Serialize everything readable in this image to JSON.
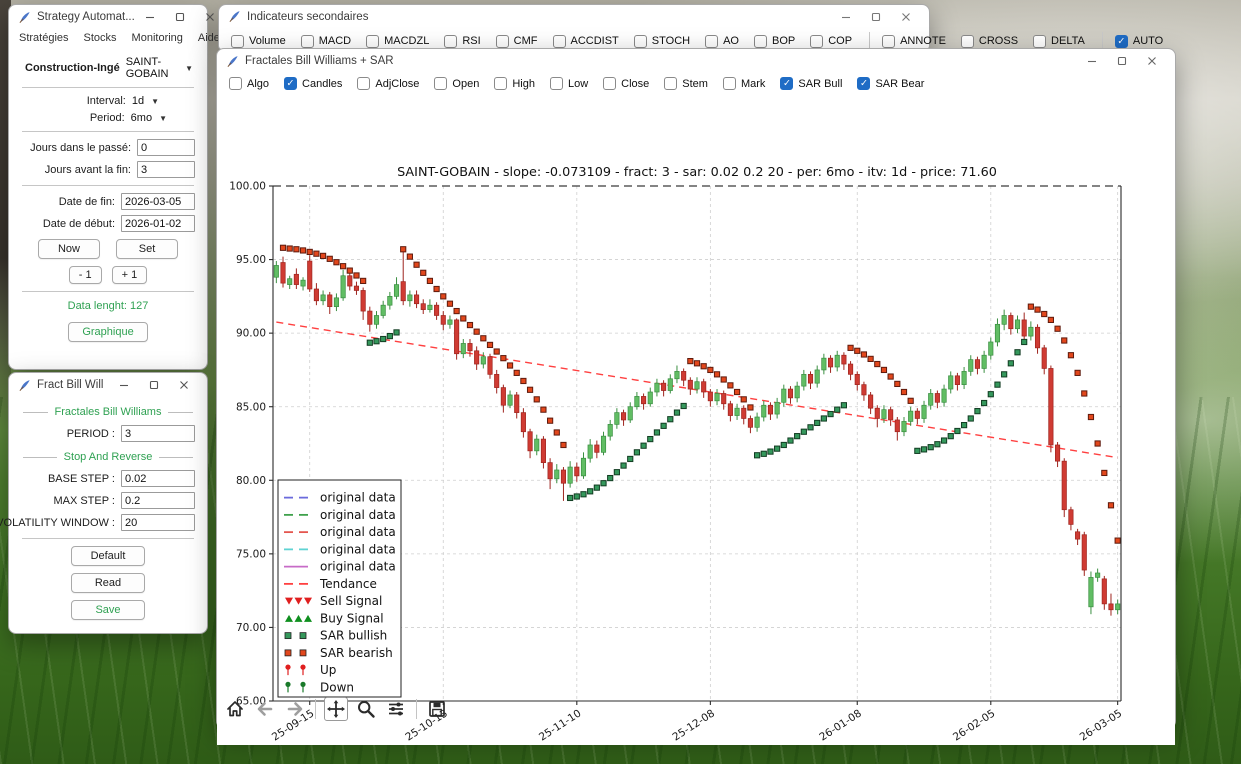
{
  "app": {
    "strategy_window": {
      "title": "Strategy Automat...",
      "menu": [
        "Stratégies",
        "Stocks",
        "Monitoring",
        "Aide"
      ],
      "construction_label": "Construction-Ingé",
      "construction_value": "SAINT-GOBAIN",
      "interval_label": "Interval:",
      "interval_value": "1d",
      "period_label": "Period:",
      "period_value": "6mo",
      "days_past_label": "Jours dans le passé:",
      "days_past_value": "0",
      "days_end_label": "Jours avant la fin:",
      "days_end_value": "3",
      "date_end_label": "Date de fin:",
      "date_end_value": "2026-03-05",
      "date_start_label": "Date de début:",
      "date_start_value": "2026-01-02",
      "now_button": "Now",
      "set_button": "Set",
      "minus_button": "- 1",
      "plus_button": "+ 1",
      "data_length_text": "Data lenght: 127",
      "graphique_button": "Graphique"
    },
    "fract_window": {
      "title": "Fract Bill Will",
      "section_fractales": "Fractales Bill Williams",
      "period_label": "PERIOD :",
      "period_value": "3",
      "section_sar": "Stop And Reverse",
      "base_step_label": "BASE STEP :",
      "base_step_value": "0.02",
      "max_step_label": "MAX STEP :",
      "max_step_value": "0.2",
      "vol_window_label": "VOLATILITY WINDOW :",
      "vol_window_value": "20",
      "default_button": "Default",
      "read_button": "Read",
      "save_button": "Save"
    },
    "indicators_window": {
      "title": "Indicateurs secondaires",
      "checkboxes": [
        {
          "label": "Volume",
          "checked": false
        },
        {
          "label": "MACD",
          "checked": false
        },
        {
          "label": "MACDZL",
          "checked": false
        },
        {
          "label": "RSI",
          "checked": false
        },
        {
          "label": "CMF",
          "checked": false
        },
        {
          "label": "ACCDIST",
          "checked": false
        },
        {
          "label": "STOCH",
          "checked": false
        },
        {
          "label": "AO",
          "checked": false
        },
        {
          "label": "BOP",
          "checked": false
        },
        {
          "label": "COP",
          "checked": false
        },
        {
          "divider": true
        },
        {
          "label": "ANNOTE",
          "checked": false
        },
        {
          "label": "CROSS",
          "checked": false
        },
        {
          "label": "DELTA",
          "checked": false
        },
        {
          "divider": true
        },
        {
          "label": "AUTO",
          "checked": true
        }
      ]
    },
    "chart_window": {
      "title": "Fractales Bill Williams + SAR",
      "checkboxes": [
        {
          "label": "Algo",
          "checked": false
        },
        {
          "label": "Candles",
          "checked": true
        },
        {
          "label": "AdjClose",
          "checked": false
        },
        {
          "label": "Open",
          "checked": false
        },
        {
          "label": "High",
          "checked": false
        },
        {
          "label": "Low",
          "checked": false
        },
        {
          "label": "Close",
          "checked": false
        },
        {
          "label": "Stem",
          "checked": false
        },
        {
          "label": "Mark",
          "checked": false
        },
        {
          "label": "SAR Bull",
          "checked": true
        },
        {
          "label": "SAR Bear",
          "checked": true
        }
      ],
      "toolbar": [
        {
          "name": "home",
          "enabled": true,
          "active": false
        },
        {
          "name": "back",
          "enabled": false,
          "active": false
        },
        {
          "name": "forward",
          "enabled": false,
          "active": false
        },
        {
          "divider": true
        },
        {
          "name": "pan",
          "enabled": true,
          "active": true
        },
        {
          "name": "zoom",
          "enabled": true,
          "active": false
        },
        {
          "name": "configure",
          "enabled": true,
          "active": false
        },
        {
          "divider": true
        },
        {
          "name": "save",
          "enabled": true,
          "active": false
        }
      ]
    }
  },
  "chart_data": {
    "type": "candlestick",
    "title": "SAINT-GOBAIN - slope: -0.073109 - fract: 3 - sar: 0.02 0.2 20 - per: 6mo - itv: 1d - price: 71.60",
    "ylim": [
      65,
      100
    ],
    "yticks": [
      65,
      70,
      75,
      80,
      85,
      90,
      95,
      100
    ],
    "n_points": 127,
    "grid": true,
    "legend_position": "lower left",
    "xticks": [
      {
        "index": 5,
        "label": "25-09-15"
      },
      {
        "index": 25,
        "label": "25-10-13"
      },
      {
        "index": 45,
        "label": "25-11-10"
      },
      {
        "index": 65,
        "label": "25-12-08"
      },
      {
        "index": 87,
        "label": "26-01-08"
      },
      {
        "index": 107,
        "label": "26-02-05"
      },
      {
        "index": 126,
        "label": "26-03-05"
      }
    ],
    "trend": {
      "label": "Tendance",
      "start_value": 90.75,
      "slope": -0.073109
    },
    "top_line_value": 100.0,
    "last_price": 71.6,
    "legend": [
      {
        "label": "original data",
        "marker": "dashes",
        "color": "#6b6bdc"
      },
      {
        "label": "original data",
        "marker": "dashes",
        "color": "#3fa14c"
      },
      {
        "label": "original data",
        "marker": "dashes",
        "color": "#e4564f"
      },
      {
        "label": "original data",
        "marker": "dashes",
        "color": "#5fd3d3"
      },
      {
        "label": "original data",
        "marker": "line",
        "color": "#c76bc7"
      },
      {
        "label": "Tendance",
        "marker": "dashes",
        "color": "#ff4040"
      },
      {
        "label": "Sell Signal",
        "marker": "tri-down",
        "color": "#e01f1f"
      },
      {
        "label": "Buy Signal",
        "marker": "tri-up",
        "color": "#0f8f1f"
      },
      {
        "label": "SAR bullish",
        "marker": "squares",
        "color": "#35985c"
      },
      {
        "label": "SAR bearish",
        "marker": "squares",
        "color": "#e2471c"
      },
      {
        "label": "Up",
        "marker": "pin",
        "color": "#e01f1f"
      },
      {
        "label": "Down",
        "marker": "pin",
        "color": "#1a7a2a"
      }
    ],
    "colors": {
      "up": "#61bd64",
      "up_edge": "#3a8f41",
      "down": "#cf3b33",
      "down_edge": "#9e241e",
      "sar_bull": "#35985c",
      "sar_bull_edge": "#123c22",
      "sar_bear": "#e2471c",
      "sar_bear_edge": "#5e1b0e",
      "trend": "#ff4040",
      "grid": "#cfcfcf",
      "spine": "#2b2b2b"
    },
    "ohlc": [
      [
        93.8,
        94.9,
        93.4,
        94.6
      ],
      [
        94.8,
        95.2,
        93.1,
        93.4
      ],
      [
        93.3,
        93.9,
        93.0,
        93.7
      ],
      [
        94.0,
        94.4,
        93.0,
        93.3
      ],
      [
        93.2,
        93.8,
        92.9,
        93.6
      ],
      [
        94.9,
        95.3,
        92.8,
        93.0
      ],
      [
        93.0,
        93.4,
        91.9,
        92.2
      ],
      [
        92.2,
        92.9,
        91.9,
        92.6
      ],
      [
        92.6,
        92.8,
        91.3,
        91.8
      ],
      [
        91.8,
        92.7,
        91.5,
        92.4
      ],
      [
        92.4,
        94.3,
        92.2,
        93.9
      ],
      [
        93.9,
        94.2,
        92.9,
        93.2
      ],
      [
        93.2,
        93.5,
        92.6,
        92.9
      ],
      [
        92.9,
        93.1,
        90.9,
        91.5
      ],
      [
        91.5,
        91.8,
        90.1,
        90.6
      ],
      [
        90.6,
        91.5,
        90.3,
        91.2
      ],
      [
        91.2,
        92.2,
        91.0,
        91.9
      ],
      [
        91.9,
        92.8,
        91.6,
        92.5
      ],
      [
        92.5,
        93.8,
        92.3,
        93.3
      ],
      [
        93.5,
        95.6,
        91.9,
        92.2
      ],
      [
        92.2,
        92.9,
        91.8,
        92.6
      ],
      [
        92.6,
        92.9,
        91.7,
        92.0
      ],
      [
        92.0,
        92.3,
        91.3,
        91.6
      ],
      [
        91.6,
        92.3,
        91.4,
        91.9
      ],
      [
        91.9,
        92.1,
        90.9,
        91.2
      ],
      [
        91.2,
        91.5,
        90.2,
        90.6
      ],
      [
        90.6,
        91.2,
        90.3,
        90.9
      ],
      [
        90.9,
        91.0,
        88.2,
        88.6
      ],
      [
        88.6,
        89.6,
        88.3,
        89.3
      ],
      [
        89.3,
        89.6,
        88.4,
        88.8
      ],
      [
        88.8,
        89.1,
        87.5,
        87.9
      ],
      [
        87.9,
        88.7,
        87.6,
        88.4
      ],
      [
        88.4,
        88.6,
        86.9,
        87.2
      ],
      [
        87.2,
        87.5,
        85.9,
        86.3
      ],
      [
        86.3,
        86.5,
        84.6,
        85.1
      ],
      [
        85.1,
        86.1,
        84.9,
        85.8
      ],
      [
        85.8,
        86.0,
        84.2,
        84.6
      ],
      [
        84.6,
        84.9,
        82.9,
        83.3
      ],
      [
        83.3,
        83.5,
        81.5,
        82.0
      ],
      [
        82.0,
        83.1,
        81.7,
        82.8
      ],
      [
        82.8,
        83.0,
        80.8,
        81.2
      ],
      [
        81.2,
        81.5,
        79.4,
        80.1
      ],
      [
        80.1,
        81.1,
        79.8,
        80.7
      ],
      [
        80.7,
        80.9,
        78.6,
        79.8
      ],
      [
        79.8,
        81.3,
        79.5,
        80.9
      ],
      [
        80.9,
        81.2,
        79.9,
        80.3
      ],
      [
        80.3,
        81.9,
        80.1,
        81.5
      ],
      [
        81.5,
        82.8,
        81.2,
        82.4
      ],
      [
        82.4,
        82.7,
        81.5,
        81.9
      ],
      [
        81.9,
        83.3,
        81.7,
        83.0
      ],
      [
        83.0,
        84.1,
        82.7,
        83.8
      ],
      [
        83.8,
        84.9,
        83.5,
        84.6
      ],
      [
        84.6,
        84.8,
        83.7,
        84.1
      ],
      [
        84.1,
        85.3,
        83.9,
        85.0
      ],
      [
        85.0,
        86.0,
        84.8,
        85.7
      ],
      [
        85.7,
        85.9,
        84.8,
        85.2
      ],
      [
        85.2,
        86.3,
        85.0,
        86.0
      ],
      [
        86.0,
        86.9,
        85.7,
        86.6
      ],
      [
        86.6,
        86.8,
        85.7,
        86.1
      ],
      [
        86.1,
        87.2,
        85.9,
        86.9
      ],
      [
        86.9,
        87.8,
        86.6,
        87.4
      ],
      [
        87.4,
        87.6,
        86.4,
        86.8
      ],
      [
        86.8,
        87.0,
        85.8,
        86.2
      ],
      [
        86.2,
        87.0,
        85.9,
        86.7
      ],
      [
        86.7,
        86.9,
        85.6,
        86.0
      ],
      [
        86.0,
        86.2,
        85.0,
        85.4
      ],
      [
        85.4,
        86.2,
        85.1,
        85.9
      ],
      [
        85.9,
        86.1,
        84.8,
        85.2
      ],
      [
        85.2,
        85.4,
        84.0,
        84.4
      ],
      [
        84.4,
        85.2,
        84.1,
        84.9
      ],
      [
        84.9,
        85.1,
        83.8,
        84.2
      ],
      [
        84.2,
        84.4,
        83.2,
        83.6
      ],
      [
        83.6,
        84.6,
        83.3,
        84.3
      ],
      [
        84.3,
        85.4,
        84.0,
        85.1
      ],
      [
        85.1,
        85.3,
        84.1,
        84.5
      ],
      [
        84.5,
        85.6,
        84.2,
        85.3
      ],
      [
        85.3,
        86.5,
        85.0,
        86.2
      ],
      [
        86.2,
        86.4,
        85.2,
        85.6
      ],
      [
        85.6,
        86.7,
        85.3,
        86.4
      ],
      [
        86.4,
        87.5,
        86.1,
        87.2
      ],
      [
        87.2,
        87.4,
        86.2,
        86.6
      ],
      [
        86.6,
        87.8,
        86.3,
        87.5
      ],
      [
        87.5,
        88.6,
        87.2,
        88.3
      ],
      [
        88.3,
        88.5,
        87.3,
        87.7
      ],
      [
        87.7,
        88.8,
        87.4,
        88.5
      ],
      [
        88.5,
        88.7,
        87.5,
        87.9
      ],
      [
        87.9,
        88.1,
        86.8,
        87.2
      ],
      [
        87.2,
        87.4,
        86.1,
        86.5
      ],
      [
        86.5,
        86.7,
        85.4,
        85.8
      ],
      [
        85.8,
        86.0,
        84.5,
        84.9
      ],
      [
        84.9,
        85.1,
        83.6,
        84.2
      ],
      [
        84.2,
        85.1,
        83.9,
        84.8
      ],
      [
        84.8,
        85.0,
        83.7,
        84.1
      ],
      [
        84.1,
        84.3,
        82.7,
        83.3
      ],
      [
        83.3,
        84.3,
        83.0,
        84.0
      ],
      [
        84.0,
        85.0,
        83.7,
        84.7
      ],
      [
        84.7,
        84.9,
        83.8,
        84.2
      ],
      [
        84.2,
        85.4,
        83.9,
        85.1
      ],
      [
        85.1,
        86.2,
        84.8,
        85.9
      ],
      [
        85.9,
        86.1,
        84.9,
        85.3
      ],
      [
        85.3,
        86.5,
        85.0,
        86.2
      ],
      [
        86.2,
        87.4,
        85.9,
        87.1
      ],
      [
        87.1,
        87.3,
        86.1,
        86.5
      ],
      [
        86.5,
        87.7,
        86.2,
        87.4
      ],
      [
        87.4,
        88.5,
        87.1,
        88.2
      ],
      [
        88.2,
        88.4,
        87.2,
        87.6
      ],
      [
        87.6,
        88.8,
        87.3,
        88.5
      ],
      [
        88.5,
        89.7,
        88.2,
        89.4
      ],
      [
        89.4,
        91.0,
        89.1,
        90.6
      ],
      [
        90.6,
        91.6,
        90.2,
        91.2
      ],
      [
        91.2,
        91.4,
        89.9,
        90.3
      ],
      [
        90.3,
        91.2,
        90.0,
        90.9
      ],
      [
        90.9,
        91.4,
        89.4,
        89.8
      ],
      [
        89.8,
        90.8,
        89.5,
        90.4
      ],
      [
        90.4,
        90.6,
        88.6,
        89.0
      ],
      [
        89.0,
        89.2,
        87.2,
        87.6
      ],
      [
        87.6,
        87.8,
        81.9,
        82.4
      ],
      [
        82.4,
        82.6,
        80.9,
        81.3
      ],
      [
        81.3,
        81.5,
        77.5,
        78.0
      ],
      [
        78.0,
        78.2,
        76.6,
        77.0
      ],
      [
        76.5,
        76.7,
        75.6,
        76.0
      ],
      [
        76.3,
        76.5,
        73.5,
        73.9
      ],
      [
        71.4,
        73.8,
        70.9,
        73.4
      ],
      [
        73.4,
        74.0,
        73.1,
        73.7
      ],
      [
        73.3,
        73.5,
        71.2,
        71.6
      ],
      [
        71.6,
        72.3,
        70.8,
        71.2
      ],
      [
        71.2,
        71.9,
        70.9,
        71.6
      ]
    ],
    "sar_runs": [
      {
        "type": "bear",
        "start": 1,
        "values": [
          95.8,
          95.75,
          95.7,
          95.62,
          95.52,
          95.4,
          95.25,
          95.05,
          94.82,
          94.55,
          94.25,
          93.92,
          93.55
        ]
      },
      {
        "type": "bull",
        "start": 14,
        "values": [
          89.35,
          89.45,
          89.6,
          89.8,
          90.05
        ]
      },
      {
        "type": "bear",
        "start": 19,
        "values": [
          95.7,
          95.2,
          94.65,
          94.1,
          93.55,
          93.0,
          92.5,
          92.0,
          91.5,
          91.0,
          90.55,
          90.1,
          89.65,
          89.2,
          88.75,
          88.3,
          87.8,
          87.3,
          86.75,
          86.15,
          85.5,
          84.8,
          84.05,
          83.25,
          82.4
        ]
      },
      {
        "type": "bull",
        "start": 44,
        "values": [
          78.8,
          78.9,
          79.05,
          79.25,
          79.5,
          79.8,
          80.15,
          80.55,
          81.0,
          81.45,
          81.9,
          82.35,
          82.8,
          83.25,
          83.7,
          84.15,
          84.6,
          85.05
        ]
      },
      {
        "type": "bear",
        "start": 62,
        "values": [
          88.1,
          87.95,
          87.75,
          87.5,
          87.2,
          86.85,
          86.45,
          86.0,
          85.5,
          84.95
        ]
      },
      {
        "type": "bull",
        "start": 72,
        "values": [
          81.7,
          81.8,
          81.95,
          82.15,
          82.4,
          82.7,
          83.0,
          83.3,
          83.6,
          83.9,
          84.2,
          84.5,
          84.8,
          85.1
        ]
      },
      {
        "type": "bear",
        "start": 86,
        "values": [
          89.0,
          88.8,
          88.55,
          88.25,
          87.9,
          87.5,
          87.05,
          86.55,
          86.0,
          85.4
        ]
      },
      {
        "type": "bull",
        "start": 96,
        "values": [
          82.0,
          82.1,
          82.25,
          82.45,
          82.7,
          83.0,
          83.35,
          83.75,
          84.2,
          84.7,
          85.25,
          85.85,
          86.5,
          87.2,
          87.95,
          88.7,
          89.4
        ]
      },
      {
        "type": "bear",
        "start": 113,
        "values": [
          91.8,
          91.6,
          91.3,
          90.9,
          90.3,
          89.5,
          88.5,
          87.3,
          85.9,
          84.3,
          82.5,
          80.5,
          78.3,
          75.9
        ]
      }
    ]
  }
}
